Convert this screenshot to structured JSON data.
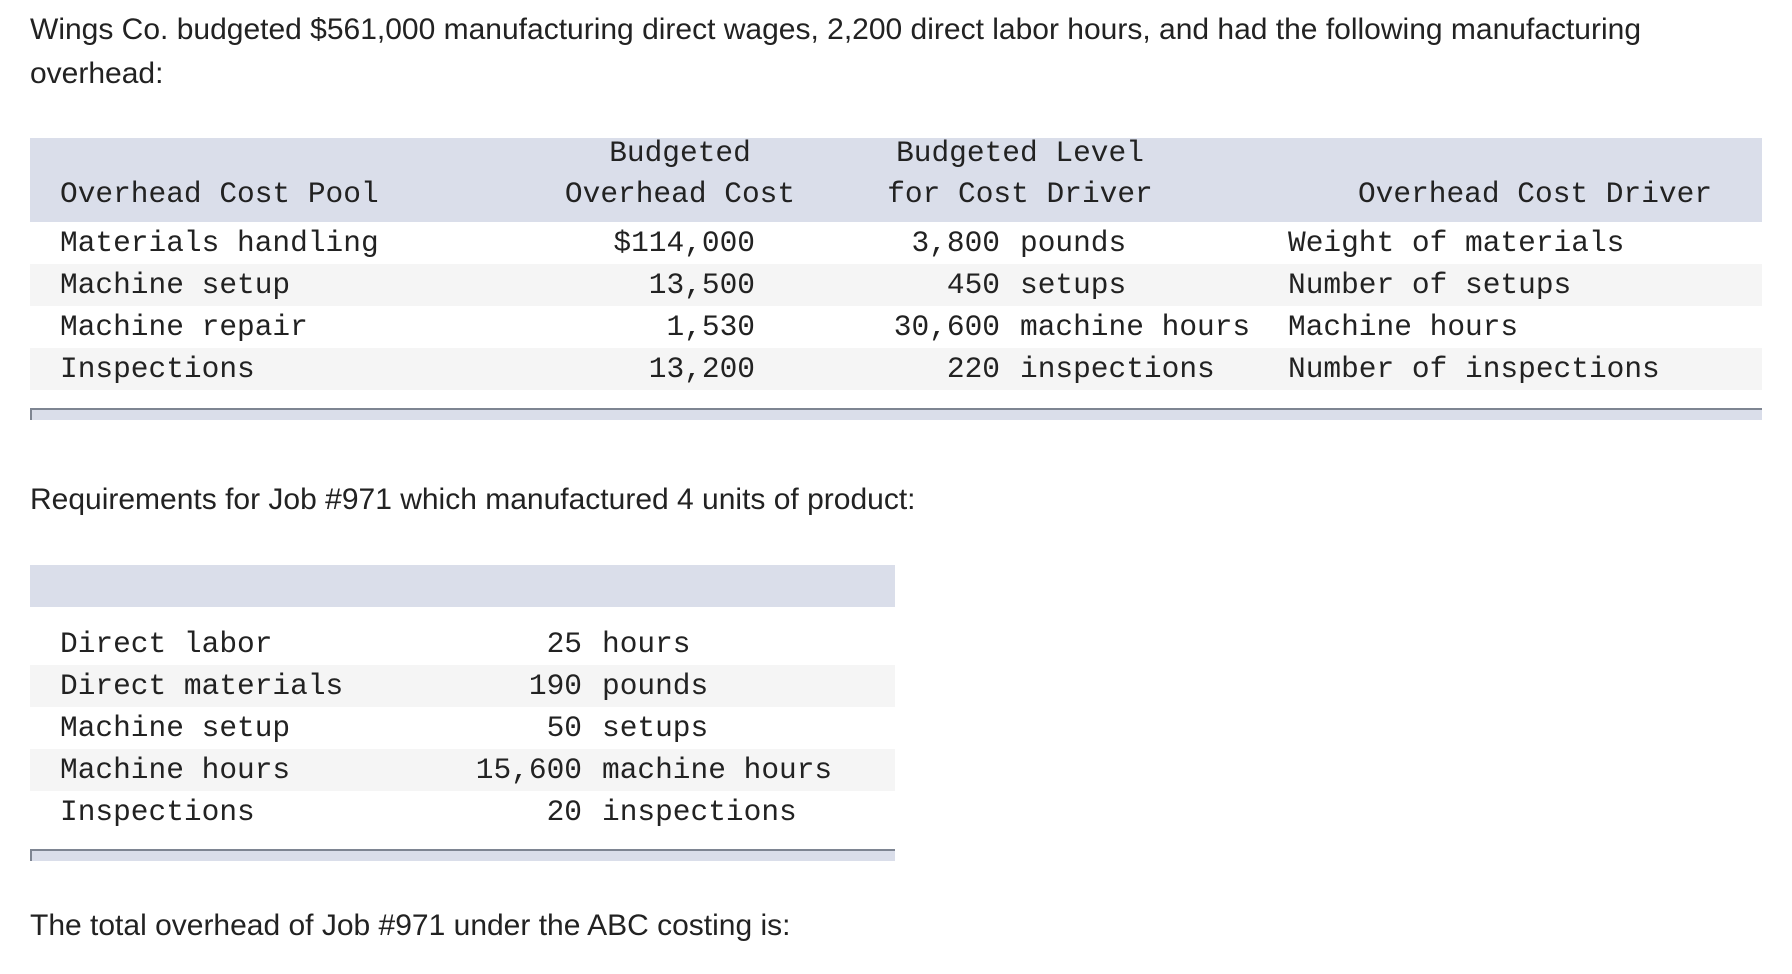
{
  "intro": "Wings Co. budgeted $561,000 manufacturing direct wages, 2,200 direct labor hours, and had the following manufacturing overhead:",
  "overhead_table": {
    "headers": {
      "pool": "Overhead Cost Pool",
      "cost_line1": "Budgeted",
      "cost_line2": "Overhead Cost",
      "level_line1": "Budgeted Level",
      "level_line2": "for Cost Driver",
      "driver": "Overhead Cost Driver"
    },
    "rows": [
      {
        "pool": "Materials handling",
        "cost": "$114,000",
        "level_qty": "3,800",
        "level_unit": "pounds",
        "driver": "Weight of materials"
      },
      {
        "pool": "Machine setup",
        "cost": "13,500",
        "level_qty": "450",
        "level_unit": "setups",
        "driver": "Number of setups"
      },
      {
        "pool": "Machine repair",
        "cost": "1,530",
        "level_qty": "30,600",
        "level_unit": "machine hours",
        "driver": "Machine hours"
      },
      {
        "pool": "Inspections",
        "cost": "13,200",
        "level_qty": "220",
        "level_unit": "inspections",
        "driver": "Number of inspections"
      }
    ]
  },
  "requirements_text": "Requirements for Job #971 which manufactured 4 units of product:",
  "job_table": {
    "rows": [
      {
        "item": "Direct labor",
        "qty": "25",
        "unit": "hours"
      },
      {
        "item": "Direct materials",
        "qty": "190",
        "unit": "pounds"
      },
      {
        "item": "Machine setup",
        "qty": "50",
        "unit": "setups"
      },
      {
        "item": "Machine hours",
        "qty": "15,600",
        "unit": "machine hours"
      },
      {
        "item": "Inspections",
        "qty": "20",
        "unit": "inspections"
      }
    ]
  },
  "question": "The total overhead of Job #971 under the ABC costing is:"
}
